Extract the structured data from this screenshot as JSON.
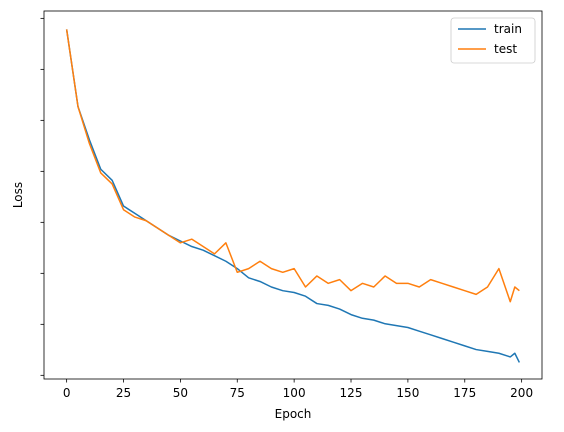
{
  "chart_data": {
    "type": "line",
    "title": "",
    "xlabel": "Epoch",
    "ylabel": "Loss",
    "xlim": [
      -9.95,
      208.95
    ],
    "ylim": [
      0,
      1
    ],
    "x_ticks": [
      0,
      25,
      50,
      75,
      100,
      125,
      150,
      175,
      200
    ],
    "y_tick_count": 8,
    "y_tick_labels_visible": false,
    "grid": false,
    "legend": {
      "position": "top-right"
    },
    "colors": {
      "train": "#1f77b4",
      "test": "#ff7f0e"
    },
    "series": [
      {
        "name": "train",
        "color": "#1f77b4",
        "x": [
          0,
          5,
          10,
          15,
          20,
          25,
          30,
          35,
          40,
          45,
          50,
          55,
          60,
          65,
          70,
          75,
          80,
          85,
          90,
          95,
          100,
          105,
          110,
          115,
          120,
          125,
          130,
          135,
          140,
          145,
          150,
          155,
          160,
          165,
          170,
          175,
          180,
          185,
          190,
          195,
          197,
          199
        ],
        "values": [
          0.95,
          0.74,
          0.65,
          0.57,
          0.54,
          0.47,
          0.45,
          0.43,
          0.41,
          0.39,
          0.375,
          0.36,
          0.35,
          0.335,
          0.32,
          0.3,
          0.275,
          0.265,
          0.25,
          0.24,
          0.235,
          0.225,
          0.205,
          0.2,
          0.19,
          0.175,
          0.165,
          0.16,
          0.15,
          0.145,
          0.14,
          0.13,
          0.12,
          0.11,
          0.1,
          0.09,
          0.08,
          0.075,
          0.07,
          0.06,
          0.07,
          0.045
        ]
      },
      {
        "name": "test",
        "color": "#ff7f0e",
        "x": [
          0,
          5,
          10,
          15,
          20,
          25,
          30,
          35,
          40,
          45,
          50,
          55,
          60,
          65,
          70,
          75,
          80,
          85,
          90,
          95,
          100,
          105,
          110,
          115,
          120,
          125,
          130,
          135,
          140,
          145,
          150,
          155,
          160,
          165,
          170,
          175,
          180,
          185,
          190,
          195,
          197,
          199
        ],
        "values": [
          0.95,
          0.74,
          0.64,
          0.56,
          0.53,
          0.46,
          0.44,
          0.43,
          0.41,
          0.39,
          0.37,
          0.38,
          0.36,
          0.34,
          0.37,
          0.29,
          0.3,
          0.32,
          0.3,
          0.29,
          0.3,
          0.25,
          0.28,
          0.26,
          0.27,
          0.24,
          0.26,
          0.25,
          0.28,
          0.26,
          0.26,
          0.25,
          0.27,
          0.26,
          0.25,
          0.24,
          0.23,
          0.25,
          0.3,
          0.21,
          0.25,
          0.24
        ]
      }
    ]
  }
}
